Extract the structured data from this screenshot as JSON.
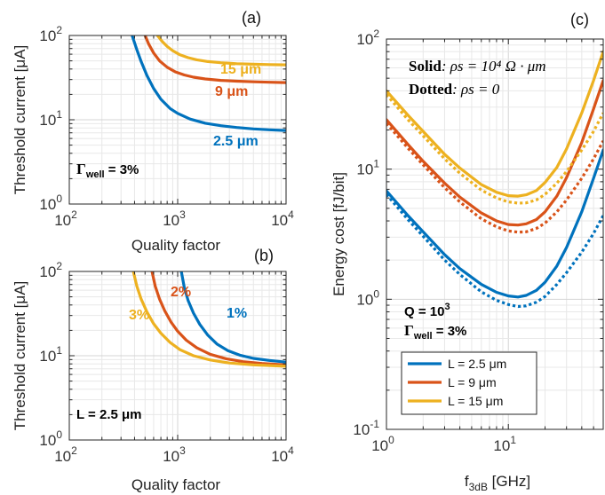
{
  "colors": {
    "blue": "#0072BD",
    "orange": "#D95319",
    "yellow": "#EDB120"
  },
  "chart_data": [
    {
      "panel": "(a)",
      "type": "line",
      "xscale": "log",
      "yscale": "log",
      "xlim": [
        100,
        10000
      ],
      "ylim": [
        1,
        100
      ],
      "xlabel": "Quality factor",
      "ylabel": "Threshold current [μA]",
      "xtick_labels": [
        "10",
        "10",
        "10"
      ],
      "xtick_exps": [
        "2",
        "3",
        "4"
      ],
      "ytick_labels": [
        "10",
        "10",
        "10"
      ],
      "ytick_exps": [
        "0",
        "1",
        "2"
      ],
      "grid": true,
      "annotation": {
        "symbol": "Γ",
        "sub": "well",
        "rest": " = 3%"
      },
      "series": [
        {
          "name": "2.5 μm",
          "color": "blue",
          "x": [
            380,
            420,
            460,
            520,
            600,
            700,
            850,
            1000,
            1300,
            1800,
            2500,
            3500,
            5000,
            7000,
            10000
          ],
          "y": [
            100,
            68,
            49,
            33.5,
            23.5,
            17.5,
            13.6,
            11.9,
            10.2,
            9.1,
            8.5,
            8.1,
            7.8,
            7.6,
            7.45
          ]
        },
        {
          "name": "9 μm",
          "color": "orange",
          "x": [
            500,
            540,
            600,
            680,
            800,
            950,
            1150,
            1400,
            1800,
            2500,
            3500,
            5000,
            7000,
            10000
          ],
          "y": [
            100,
            79,
            62,
            50,
            42,
            37,
            34,
            32,
            30.5,
            29.3,
            28.7,
            28.2,
            27.9,
            27.6
          ]
        },
        {
          "name": "15 μm",
          "color": "yellow",
          "x": [
            650,
            720,
            800,
            900,
            1050,
            1250,
            1500,
            1900,
            2500,
            3500,
            5000,
            7000,
            10000
          ],
          "y": [
            100,
            85,
            74,
            66,
            59,
            54.5,
            51.5,
            49,
            47.5,
            46.3,
            45.6,
            45.2,
            44.8
          ]
        }
      ],
      "series_labels": [
        "2.5 μm",
        "9 μm",
        "15 μm"
      ]
    },
    {
      "panel": "(b)",
      "type": "line",
      "xscale": "log",
      "yscale": "log",
      "xlim": [
        100,
        10000
      ],
      "ylim": [
        1,
        100
      ],
      "xlabel": "Quality factor",
      "ylabel": "Threshold current [μA]",
      "xtick_labels": [
        "10",
        "10",
        "10"
      ],
      "xtick_exps": [
        "2",
        "3",
        "4"
      ],
      "ytick_labels": [
        "10",
        "10",
        "10"
      ],
      "ytick_exps": [
        "0",
        "1",
        "2"
      ],
      "grid": true,
      "annotation": "L = 2.5 μm",
      "series": [
        {
          "name": "1%",
          "color": "blue",
          "x": [
            1080,
            1150,
            1250,
            1400,
            1600,
            1900,
            2300,
            2900,
            3800,
            5000,
            7000,
            10000
          ],
          "y": [
            100,
            65,
            45,
            32,
            23.5,
            17.5,
            13.8,
            11.5,
            10.1,
            9.3,
            8.8,
            8.4
          ]
        },
        {
          "name": "2%",
          "color": "orange",
          "x": [
            580,
            620,
            680,
            760,
            870,
            1000,
            1200,
            1500,
            2000,
            2800,
            4000,
            6000,
            10000
          ],
          "y": [
            100,
            67,
            47,
            34,
            25,
            19.5,
            15.3,
            12.4,
            10.4,
            9.2,
            8.5,
            8.1,
            7.8
          ]
        },
        {
          "name": "3%",
          "color": "yellow",
          "x": [
            390,
            420,
            460,
            520,
            600,
            700,
            850,
            1050,
            1400,
            2000,
            3000,
            5000,
            10000
          ],
          "y": [
            100,
            67,
            47,
            33,
            24,
            18.5,
            14.4,
            11.8,
            10,
            8.9,
            8.2,
            7.8,
            7.5
          ]
        }
      ],
      "series_labels": [
        "1%",
        "2%",
        "3%"
      ]
    },
    {
      "panel": "(c)",
      "type": "line",
      "xscale": "log",
      "yscale": "log",
      "xlim": [
        1,
        60
      ],
      "ylim": [
        0.1,
        100
      ],
      "xlabel_main": "f",
      "xlabel_sub": "3dB",
      "xlabel_unit": " [GHz]",
      "ylabel": "Energy cost [fJ/bit]",
      "xtick_labels": [
        "10",
        "10"
      ],
      "xtick_exps": [
        "0",
        "1"
      ],
      "ytick_labels": [
        "10",
        "10",
        "10",
        "10"
      ],
      "ytick_exps": [
        "-1",
        "0",
        "1",
        "2"
      ],
      "grid": true,
      "note_solid": {
        "bold": "Solid",
        "rest": ": ρs = 10⁴ Ω · μm"
      },
      "note_dotted": {
        "bold": "Dotted",
        "rest": ": ρs = 0"
      },
      "annotation_q": {
        "text": "Q = 10",
        "exp": "3"
      },
      "annotation_g": {
        "symbol": "Γ",
        "sub": "well",
        "rest": " = 3%"
      },
      "legend": [
        "L = 2.5 μm",
        "L = 9 μm",
        "L = 15 μm"
      ],
      "legend_placement": "bottom-left",
      "series": [
        {
          "name": "L = 2.5 μm",
          "color": "blue",
          "style": "solid",
          "x": [
            1,
            1.5,
            2,
            3,
            4,
            6,
            8,
            10,
            12,
            14,
            17,
            20,
            25,
            30,
            40,
            50,
            60
          ],
          "y": [
            6.8,
            4.4,
            3.3,
            2.2,
            1.72,
            1.3,
            1.13,
            1.06,
            1.04,
            1.07,
            1.17,
            1.35,
            1.8,
            2.5,
            4.7,
            8.5,
            14
          ]
        },
        {
          "name": "L = 2.5 μm",
          "color": "blue",
          "style": "dotted",
          "x": [
            1,
            1.5,
            2,
            3,
            4,
            6,
            8,
            10,
            12,
            14,
            17,
            20,
            25,
            30,
            40,
            50,
            60
          ],
          "y": [
            6.4,
            4.1,
            3.05,
            2.0,
            1.55,
            1.14,
            0.98,
            0.91,
            0.88,
            0.89,
            0.95,
            1.05,
            1.3,
            1.6,
            2.3,
            3.2,
            4.4
          ]
        },
        {
          "name": "L = 9 μm",
          "color": "orange",
          "style": "solid",
          "x": [
            1,
            1.5,
            2,
            3,
            4,
            6,
            8,
            10,
            12,
            14,
            17,
            20,
            25,
            30,
            40,
            50,
            60
          ],
          "y": [
            24,
            15.5,
            11.5,
            7.8,
            6.1,
            4.6,
            4.0,
            3.75,
            3.72,
            3.8,
            4.1,
            4.7,
            6.2,
            8.6,
            16,
            29,
            48
          ]
        },
        {
          "name": "L = 9 μm",
          "color": "orange",
          "style": "dotted",
          "x": [
            1,
            1.5,
            2,
            3,
            4,
            6,
            8,
            10,
            12,
            14,
            17,
            20,
            25,
            30,
            40,
            50,
            60
          ],
          "y": [
            22.5,
            14.5,
            10.8,
            7.2,
            5.6,
            4.15,
            3.6,
            3.35,
            3.28,
            3.3,
            3.5,
            3.85,
            4.7,
            5.8,
            8.5,
            12,
            16.5
          ]
        },
        {
          "name": "L = 15 μm",
          "color": "yellow",
          "style": "solid",
          "x": [
            1,
            1.5,
            2,
            3,
            4,
            6,
            8,
            10,
            12,
            14,
            17,
            20,
            25,
            30,
            40,
            50,
            60
          ],
          "y": [
            40,
            26,
            19.5,
            13,
            10.2,
            7.6,
            6.65,
            6.25,
            6.2,
            6.35,
            6.85,
            7.9,
            10.3,
            14.3,
            27,
            48,
            80
          ]
        },
        {
          "name": "L = 15 μm",
          "color": "yellow",
          "style": "dotted",
          "x": [
            1,
            1.5,
            2,
            3,
            4,
            6,
            8,
            10,
            12,
            14,
            17,
            20,
            25,
            30,
            40,
            50,
            60
          ],
          "y": [
            37.5,
            24,
            18,
            12,
            9.3,
            6.9,
            6.0,
            5.6,
            5.48,
            5.5,
            5.8,
            6.4,
            7.8,
            9.6,
            14,
            19.5,
            27
          ]
        }
      ]
    }
  ]
}
